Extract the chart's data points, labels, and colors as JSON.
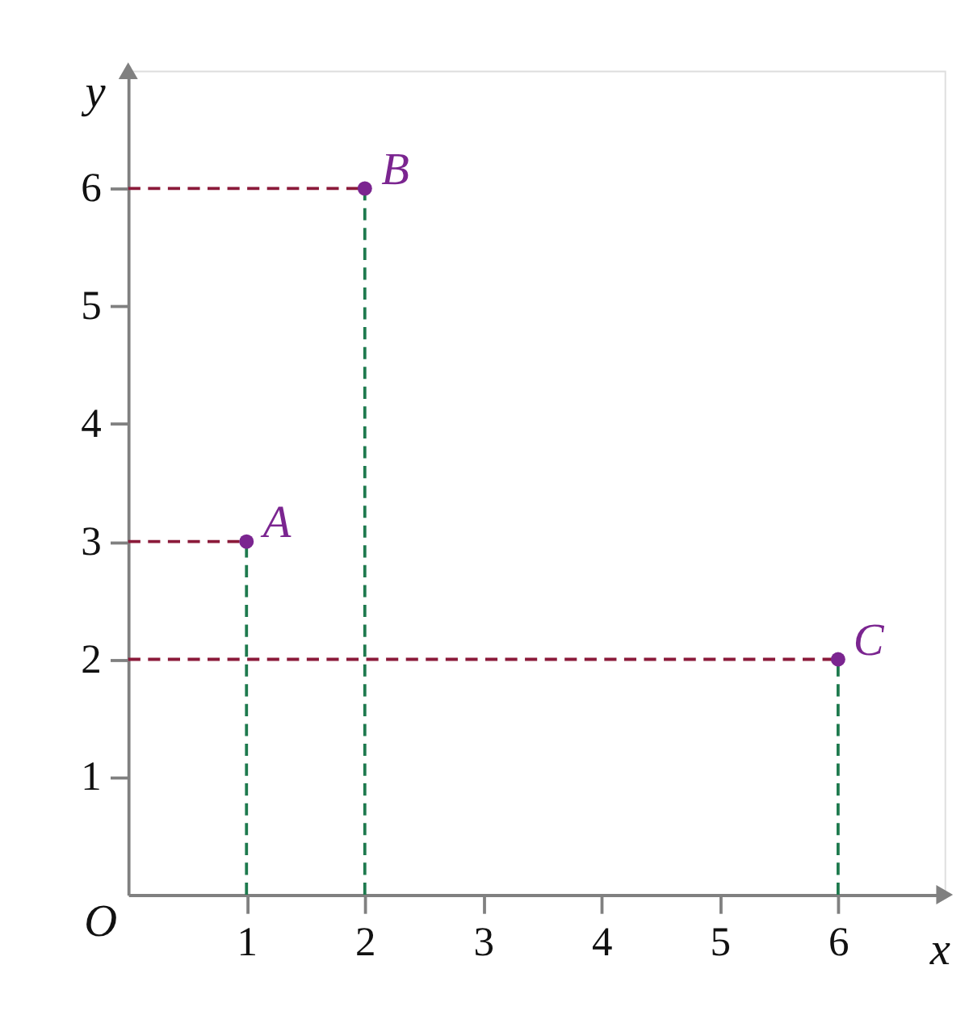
{
  "chart_data": {
    "type": "scatter",
    "xlabel": "x",
    "ylabel": "y",
    "xlim": [
      0,
      6.9
    ],
    "ylim": [
      0,
      7
    ],
    "xticks": [
      1,
      2,
      3,
      4,
      5,
      6
    ],
    "yticks": [
      1,
      2,
      3,
      4,
      5,
      6
    ],
    "grid": false,
    "series": [
      {
        "type": "line",
        "line_style": "dashed",
        "marker": "none",
        "color": "#8b1a3a",
        "x": [
          0,
          1
        ],
        "values": [
          3,
          3
        ]
      },
      {
        "type": "line",
        "line_style": "dashed",
        "marker": "none",
        "color": "#8b1a3a",
        "x": [
          0,
          2
        ],
        "values": [
          6,
          6
        ]
      },
      {
        "type": "line",
        "line_style": "dashed",
        "marker": "none",
        "color": "#8b1a3a",
        "x": [
          0,
          6
        ],
        "values": [
          2,
          2
        ]
      },
      {
        "type": "line",
        "line_style": "dashed",
        "marker": "none",
        "color": "#1e7a4e",
        "x": [
          1,
          1
        ],
        "values": [
          0,
          3
        ]
      },
      {
        "type": "line",
        "line_style": "dashed",
        "marker": "none",
        "color": "#1e7a4e",
        "x": [
          2,
          2
        ],
        "values": [
          0,
          6
        ]
      },
      {
        "type": "line",
        "line_style": "dashed",
        "marker": "none",
        "color": "#1e7a4e",
        "x": [
          6,
          6
        ],
        "values": [
          0,
          2
        ]
      },
      {
        "marker": "circle",
        "color": "#7b2590",
        "x": [
          1,
          2,
          6
        ],
        "values": [
          3,
          6,
          2
        ]
      }
    ],
    "annotations": [
      "O",
      {
        "text": "A",
        "x": 1,
        "y": 3
      },
      {
        "text": "B",
        "x": 2,
        "y": 6
      },
      {
        "text": "C",
        "x": 6,
        "y": 2
      }
    ]
  }
}
